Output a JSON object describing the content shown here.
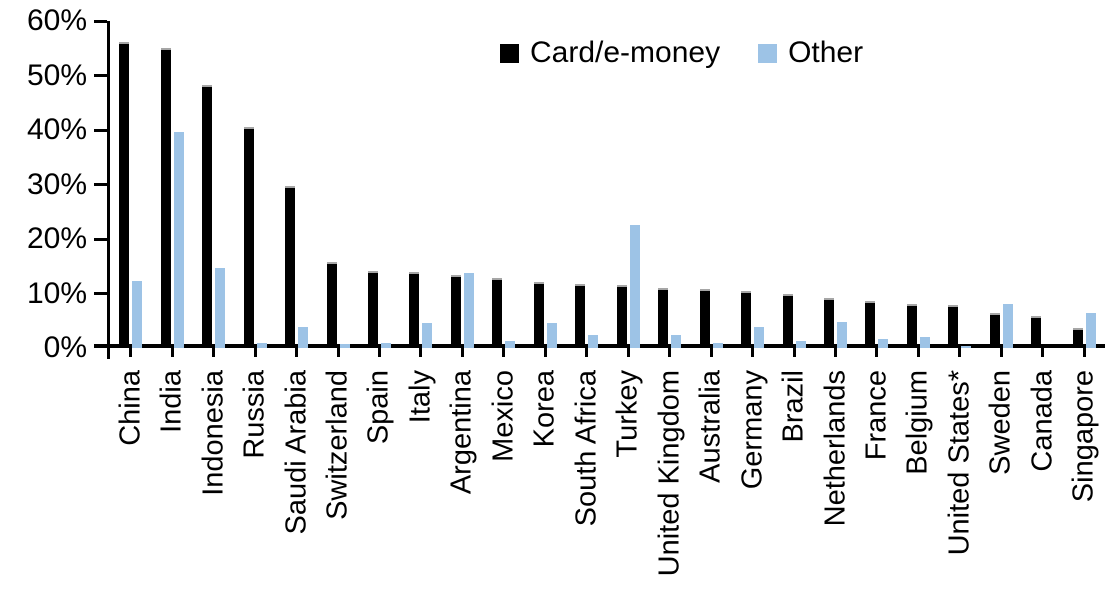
{
  "chart_data": {
    "type": "bar",
    "title": "",
    "xlabel": "",
    "ylabel": "",
    "ylim": [
      0,
      60
    ],
    "ytick_step": 10,
    "ytick_format": "percent",
    "grid": false,
    "legend_position": "top-center",
    "categories": [
      "China",
      "India",
      "Indonesia",
      "Russia",
      "Saudi Arabia",
      "Switzerland",
      "Spain",
      "Italy",
      "Argentina",
      "Mexico",
      "Korea",
      "South Africa",
      "Turkey",
      "United Kingdom",
      "Australia",
      "Germany",
      "Brazil",
      "Netherlands",
      "France",
      "Belgium",
      "United States*",
      "Sweden",
      "Canada",
      "Singapore"
    ],
    "series": [
      {
        "name": "Card/e-money",
        "color": "#000000",
        "values": [
          56.2,
          55.1,
          48.3,
          40.6,
          29.8,
          15.7,
          14.2,
          14.0,
          13.4,
          12.8,
          12.2,
          11.7,
          11.6,
          11.0,
          10.8,
          10.5,
          9.9,
          9.2,
          8.7,
          8.1,
          7.8,
          6.5,
          5.9,
          3.7
        ]
      },
      {
        "name": "Other",
        "color": "#9DC3E6",
        "values": [
          12.3,
          39.7,
          14.6,
          1.0,
          3.9,
          0.8,
          0.9,
          4.5,
          13.8,
          1.3,
          4.6,
          2.4,
          22.5,
          2.3,
          1.0,
          3.9,
          1.2,
          4.8,
          1.6,
          2.1,
          0.3,
          8.0,
          0.0,
          6.5
        ]
      }
    ]
  },
  "y_axis": {
    "tick_labels": [
      "0%",
      "10%",
      "20%",
      "30%",
      "40%",
      "50%",
      "60%"
    ]
  },
  "legend": {
    "card_label": "Card/e-money",
    "other_label": "Other"
  }
}
